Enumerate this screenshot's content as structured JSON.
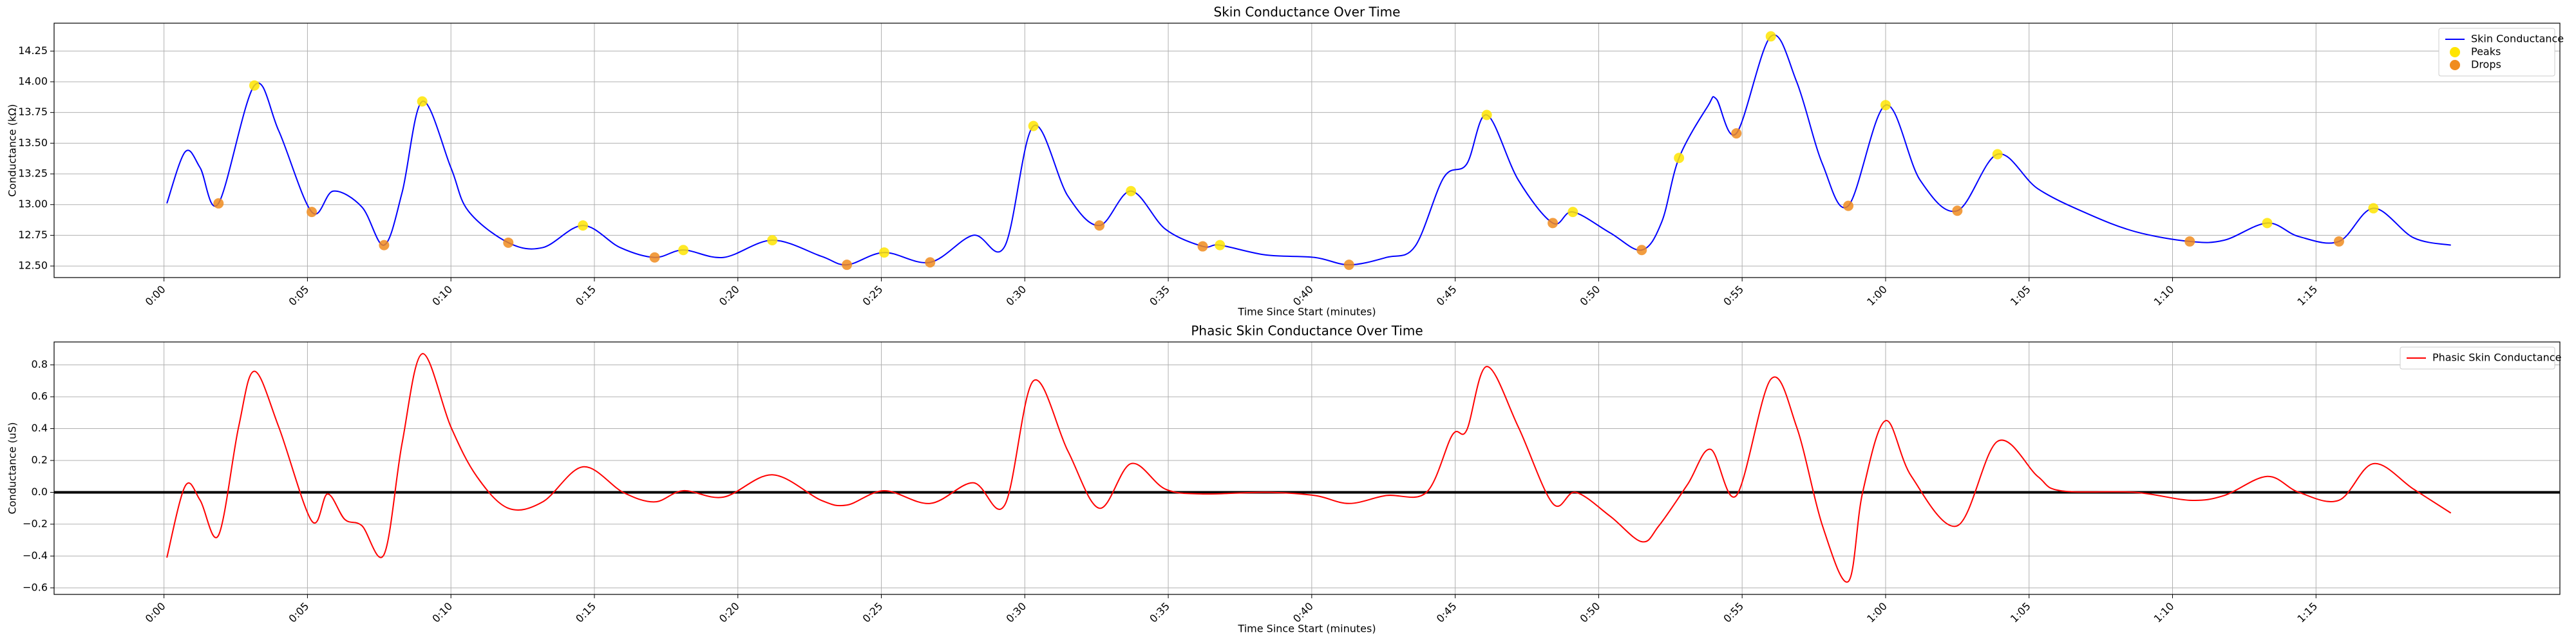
{
  "chart_data": [
    {
      "type": "line",
      "title": "Skin Conductance Over Time",
      "x_label": "Time Since Start (minutes)",
      "y_label": "Conductance (kΩ)",
      "xlim": [
        -3.83,
        83.5
      ],
      "ylim": [
        12.406,
        14.477
      ],
      "grid": true,
      "legend": "upper right",
      "xticks": [
        {
          "value": 0,
          "label": "0:00"
        },
        {
          "value": 5,
          "label": "0:05"
        },
        {
          "value": 10,
          "label": "0:10"
        },
        {
          "value": 15,
          "label": "0:15"
        },
        {
          "value": 20,
          "label": "0:20"
        },
        {
          "value": 25,
          "label": "0:25"
        },
        {
          "value": 30,
          "label": "0:30"
        },
        {
          "value": 35,
          "label": "0:35"
        },
        {
          "value": 40,
          "label": "0:40"
        },
        {
          "value": 45,
          "label": "0:45"
        },
        {
          "value": 50,
          "label": "0:50"
        },
        {
          "value": 55,
          "label": "0:55"
        },
        {
          "value": 60,
          "label": "1:00"
        },
        {
          "value": 65,
          "label": "1:05"
        },
        {
          "value": 70,
          "label": "1:10"
        },
        {
          "value": 75,
          "label": "1:15"
        }
      ],
      "yticks": [
        {
          "value": 12.5,
          "label": "12.50"
        },
        12.75,
        {
          "value": 13,
          "label": "13.00"
        },
        13.25,
        {
          "value": 13.5,
          "label": "13.50"
        },
        13.75,
        {
          "value": 14,
          "label": "14.00"
        },
        14.25
      ],
      "series": [
        {
          "name": "Skin Conductance",
          "type": "line",
          "color": "#0000ff",
          "x": [
            0.1,
            0.74,
            1.26,
            1.9,
            3.15,
            4.0,
            5.15,
            5.9,
            6.9,
            7.67,
            8.3,
            9.0,
            10.0,
            10.6,
            12.0,
            13.2,
            14.6,
            15.9,
            17.1,
            18.1,
            19.5,
            21.2,
            22.9,
            23.8,
            25.1,
            26.7,
            28.2,
            29.3,
            30.3,
            31.5,
            32.6,
            33.7,
            34.9,
            36.2,
            36.8,
            38.4,
            40.1,
            41.3,
            42.6,
            43.6,
            44.6,
            45.4,
            46.1,
            47.2,
            48.4,
            49.1,
            50.4,
            51.5,
            52.2,
            52.8,
            53.8,
            54.1,
            54.8,
            56.0,
            56.9,
            57.8,
            58.7,
            60.0,
            61.2,
            62.5,
            63.9,
            65.3,
            67.0,
            68.7,
            70.6,
            71.8,
            73.3,
            74.4,
            75.8,
            77.0,
            78.4,
            79.7
          ],
          "values": [
            13.01,
            13.43,
            13.3,
            13.01,
            13.97,
            13.6,
            12.94,
            13.11,
            12.98,
            12.67,
            13.1,
            13.84,
            13.3,
            12.95,
            12.69,
            12.65,
            12.83,
            12.65,
            12.57,
            12.63,
            12.57,
            12.71,
            12.58,
            12.51,
            12.61,
            12.53,
            12.75,
            12.66,
            13.64,
            13.07,
            12.83,
            13.11,
            12.8,
            12.66,
            12.67,
            12.59,
            12.57,
            12.51,
            12.57,
            12.66,
            13.22,
            13.33,
            13.73,
            13.2,
            12.85,
            12.94,
            12.77,
            12.63,
            12.86,
            13.38,
            13.8,
            13.86,
            13.58,
            14.37,
            14.0,
            13.33,
            12.99,
            13.81,
            13.2,
            12.95,
            13.41,
            13.13,
            12.93,
            12.78,
            12.7,
            12.71,
            12.85,
            12.74,
            12.7,
            12.97,
            12.73,
            12.67
          ]
        },
        {
          "name": "Peaks",
          "type": "scatter",
          "color": "#ffe500",
          "x": [
            3.15,
            9.0,
            14.6,
            18.1,
            21.2,
            25.1,
            30.3,
            33.7,
            36.8,
            46.1,
            49.1,
            52.8,
            56.0,
            60.0,
            63.9,
            73.3,
            77.0
          ],
          "values": [
            13.97,
            13.84,
            12.83,
            12.63,
            12.71,
            12.61,
            13.64,
            13.11,
            12.67,
            13.73,
            12.94,
            13.38,
            14.37,
            13.81,
            13.41,
            12.85,
            12.97
          ]
        },
        {
          "name": "Drops",
          "type": "scatter",
          "color": "#f08c1e",
          "x": [
            1.9,
            5.15,
            7.67,
            12.0,
            17.1,
            23.8,
            26.7,
            32.6,
            36.2,
            41.3,
            48.4,
            51.5,
            54.8,
            58.7,
            62.5,
            70.6,
            75.8
          ],
          "values": [
            13.01,
            12.94,
            12.67,
            12.69,
            12.57,
            12.51,
            12.53,
            12.83,
            12.66,
            12.51,
            12.85,
            12.63,
            13.58,
            12.99,
            12.95,
            12.7,
            12.7
          ]
        }
      ]
    },
    {
      "type": "line",
      "title": "Phasic Skin Conductance Over Time",
      "x_label": "Time Since Start (minutes)",
      "y_label": "Conductance (uS)",
      "xlim": [
        -3.83,
        83.5
      ],
      "ylim": [
        -0.641,
        0.944
      ],
      "grid": true,
      "legend": "upper right",
      "hline": 0,
      "xticks": [
        {
          "value": 0,
          "label": "0:00"
        },
        {
          "value": 5,
          "label": "0:05"
        },
        {
          "value": 10,
          "label": "0:10"
        },
        {
          "value": 15,
          "label": "0:15"
        },
        {
          "value": 20,
          "label": "0:20"
        },
        {
          "value": 25,
          "label": "0:25"
        },
        {
          "value": 30,
          "label": "0:30"
        },
        {
          "value": 35,
          "label": "0:35"
        },
        {
          "value": 40,
          "label": "0:40"
        },
        {
          "value": 45,
          "label": "0:45"
        },
        {
          "value": 50,
          "label": "0:50"
        },
        {
          "value": 55,
          "label": "0:55"
        },
        {
          "value": 60,
          "label": "1:00"
        },
        {
          "value": 65,
          "label": "1:05"
        },
        {
          "value": 70,
          "label": "1:10"
        },
        {
          "value": 75,
          "label": "1:15"
        }
      ],
      "yticks": [
        {
          "value": -0.6,
          "label": "−0.6"
        },
        {
          "value": -0.4,
          "label": "−0.4"
        },
        {
          "value": -0.2,
          "label": "−0.2"
        },
        {
          "value": 0,
          "label": "0.0"
        },
        0.2,
        0.4,
        0.6,
        0.8
      ],
      "series": [
        {
          "name": "Phasic Skin Conductance",
          "type": "line",
          "color": "#ff0000",
          "x": [
            0.1,
            0.74,
            1.26,
            1.9,
            2.6,
            3.15,
            4.0,
            5.15,
            5.7,
            6.3,
            6.9,
            7.67,
            8.3,
            9.0,
            10.0,
            10.9,
            12.0,
            13.2,
            14.6,
            16.0,
            17.1,
            18.1,
            19.5,
            21.2,
            22.9,
            23.8,
            25.1,
            26.7,
            28.2,
            29.3,
            30.3,
            31.5,
            32.6,
            33.7,
            34.9,
            36.2,
            38.4,
            40.1,
            41.3,
            42.6,
            44.0,
            44.9,
            45.4,
            46.1,
            47.2,
            48.4,
            49.2,
            50.4,
            51.5,
            52.1,
            53.1,
            53.9,
            54.8,
            56.0,
            56.9,
            57.8,
            58.7,
            59.2,
            60.0,
            60.9,
            62.5,
            63.9,
            65.3,
            66.1,
            68.7,
            70.6,
            71.8,
            73.3,
            74.4,
            75.8,
            77.0,
            78.4,
            79.7
          ],
          "values": [
            -0.41,
            0.04,
            -0.05,
            -0.27,
            0.41,
            0.76,
            0.41,
            -0.18,
            -0.01,
            -0.17,
            -0.21,
            -0.39,
            0.31,
            0.87,
            0.41,
            0.1,
            -0.1,
            -0.06,
            0.16,
            0,
            -0.06,
            0.01,
            -0.03,
            0.11,
            -0.05,
            -0.08,
            0.01,
            -0.07,
            0.06,
            -0.08,
            0.7,
            0.26,
            -0.1,
            0.18,
            0.02,
            -0.01,
            0,
            -0.02,
            -0.07,
            -0.02,
            0,
            0.36,
            0.39,
            0.79,
            0.41,
            -0.07,
            0,
            -0.15,
            -0.31,
            -0.21,
            0.05,
            0.27,
            -0.02,
            0.71,
            0.41,
            -0.21,
            -0.56,
            0,
            0.45,
            0.1,
            -0.21,
            0.32,
            0.1,
            0.01,
            0,
            -0.05,
            -0.02,
            0.1,
            0,
            -0.05,
            0.18,
            0.02,
            -0.13
          ]
        }
      ]
    }
  ]
}
